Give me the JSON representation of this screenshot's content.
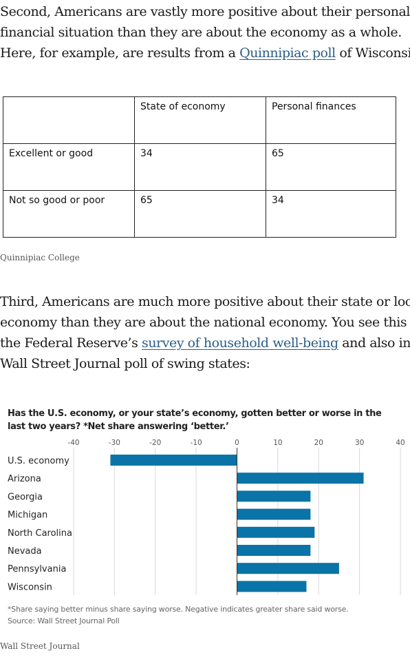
{
  "para1": {
    "line1": "Second, Americans are vastly more positive about their personal",
    "line2": "financial situation than they are about the economy as a whole.",
    "line3_before": "Here, for example, are results from a ",
    "line3_link": "Quinnipiac poll",
    "line3_after": " of Wisconsin:"
  },
  "poll_table": {
    "headers": [
      "",
      "State of economy",
      "Personal finances"
    ],
    "rows": [
      [
        "Excellent or good",
        "34",
        "65"
      ],
      [
        "Not so good or poor",
        "65",
        "34"
      ]
    ]
  },
  "caption1": "Quinnipiac College",
  "para2": {
    "line1": "Third, Americans are much more positive about their state or local",
    "line2": "economy than they are about the national economy. You see this in",
    "line3_before": "the Federal Reserve’s ",
    "line3_link": "survey of household well-being",
    "line3_after": " and also in a",
    "line4": "Wall Street Journal poll of swing states:"
  },
  "chart_data": {
    "type": "bar",
    "orientation": "horizontal",
    "title": "Has the U.S. economy, or your state’s economy, gotten better or worse in the last two years? *Net share answering ‘better.’",
    "categories": [
      "U.S. economy",
      "Arizona",
      "Georgia",
      "Michigan",
      "North Carolina",
      "Nevada",
      "Pennsylvania",
      "Wisconsin"
    ],
    "values": [
      -31,
      31,
      18,
      18,
      19,
      18,
      25,
      17
    ],
    "xlim": [
      -40,
      40
    ],
    "xticks": [
      -40,
      -30,
      -20,
      -10,
      0,
      10,
      20,
      30,
      40
    ],
    "grid": true,
    "bar_color": "#0a73a7",
    "grid_color": "#d9d9d9",
    "axis_color": "#333333",
    "footnote": "*Share saying better minus share saying worse. Negative indicates greater share said worse.",
    "source": "Source: Wall Street Journal Poll"
  },
  "caption2": "Wall Street Journal"
}
